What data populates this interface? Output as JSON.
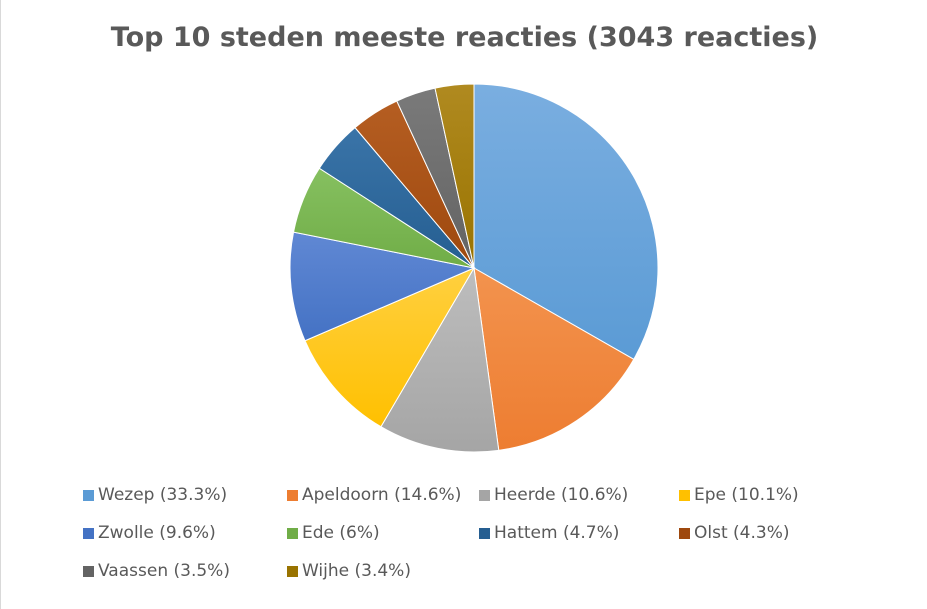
{
  "chart_data": {
    "type": "pie",
    "title": "Top 10 steden meeste reacties (3043 reacties)",
    "categories": [
      "Wezep",
      "Apeldoorn",
      "Heerde",
      "Epe",
      "Zwolle",
      "Ede",
      "Hattem",
      "Olst",
      "Vaassen",
      "Wijhe"
    ],
    "values": [
      33.3,
      14.6,
      10.6,
      10.1,
      9.6,
      6,
      4.7,
      4.3,
      3.5,
      3.4
    ],
    "legend_labels": [
      "Wezep (33.3%)",
      "Apeldoorn (14.6%)",
      "Heerde (10.6%)",
      "Epe (10.1%)",
      "Zwolle (9.6%)",
      "Ede (6%)",
      "Hattem (4.7%)",
      "Olst (4.3%)",
      "Vaassen (3.5%)",
      "Wijhe (3.4%)"
    ],
    "colors": [
      "#5b9bd5",
      "#ed7d31",
      "#a5a5a5",
      "#ffc000",
      "#4472c4",
      "#70ad47",
      "#255e91",
      "#9e480e",
      "#636363",
      "#997300"
    ],
    "highlight_colors": [
      "#7aaee0",
      "#f3934e",
      "#bdbdbd",
      "#ffd040",
      "#6088d4",
      "#86c060",
      "#3a74a8",
      "#b55e22",
      "#7a7a7a",
      "#b08a20"
    ],
    "legend_position": "bottom",
    "start_angle": "12 o'clock",
    "direction": "clockwise"
  }
}
